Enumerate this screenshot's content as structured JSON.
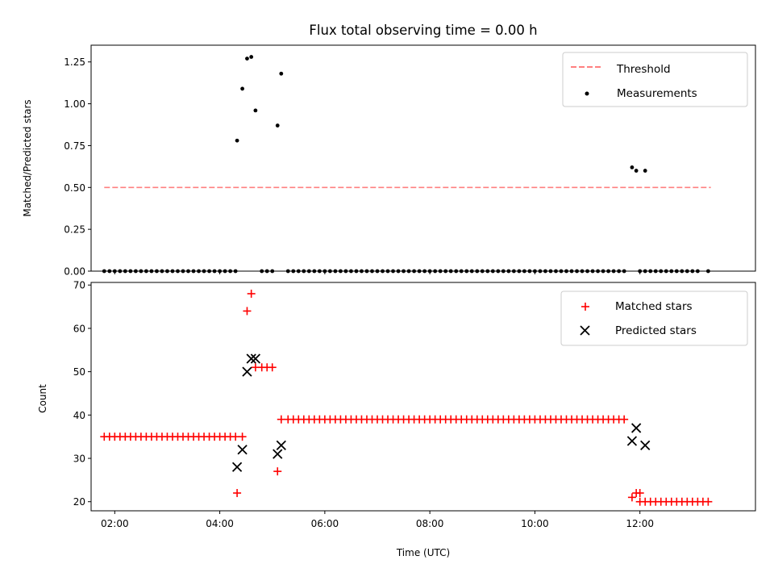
{
  "chart_data": [
    {
      "type": "scatter",
      "title": "Flux total observing time = 0.00 h",
      "ylabel": "Matched/Predicted stars",
      "xlabel": "",
      "xlim": [
        1.55,
        14.2
      ],
      "ylim": [
        0,
        1.35
      ],
      "x_ticks_hours": [
        2,
        4,
        6,
        8,
        10,
        12
      ],
      "y_ticks": [
        "0.00",
        "0.25",
        "0.50",
        "0.75",
        "1.00",
        "1.25"
      ],
      "legend_position": "upper right",
      "threshold": {
        "name": "Threshold",
        "value": 0.5,
        "x_range": [
          1.8,
          13.35
        ],
        "color": "#ff8080",
        "style": "dashed"
      },
      "series": [
        {
          "name": "Measurements",
          "color": "#000000",
          "marker": "dot",
          "points": [
            [
              4.33,
              0.78
            ],
            [
              4.43,
              1.09
            ],
            [
              4.52,
              1.27
            ],
            [
              4.6,
              1.28
            ],
            [
              4.68,
              0.96
            ],
            [
              5.1,
              0.87
            ],
            [
              5.17,
              1.18
            ],
            [
              11.85,
              0.62
            ],
            [
              11.93,
              0.6
            ],
            [
              12.1,
              0.6
            ]
          ],
          "zeros_x": [
            [
              1.8,
              4.25,
              0.1
            ],
            [
              4.8,
              5.0,
              0.1
            ],
            [
              5.3,
              11.7,
              0.1
            ],
            [
              12.0,
              13.1,
              0.1
            ],
            [
              13.3,
              13.3,
              0.1
            ]
          ]
        }
      ]
    },
    {
      "type": "scatter",
      "xlabel": "Time (UTC)",
      "ylabel": "Count",
      "xlim": [
        1.55,
        14.2
      ],
      "ylim": [
        17.9,
        70.6
      ],
      "x_tick_labels": [
        "02:00",
        "04:00",
        "06:00",
        "08:00",
        "10:00",
        "12:00"
      ],
      "x_ticks_hours": [
        2,
        4,
        6,
        8,
        10,
        12
      ],
      "y_ticks": [
        "20",
        "30",
        "40",
        "50",
        "60",
        "70"
      ],
      "legend_position": "upper right",
      "series": [
        {
          "name": "Matched stars",
          "color": "#ff0000",
          "marker": "plus",
          "runs": [
            [
              1.8,
              4.25,
              0.1,
              35
            ],
            [
              4.8,
              5.0,
              0.1,
              51
            ],
            [
              5.3,
              11.7,
              0.1,
              39
            ],
            [
              12.0,
              13.3,
              0.1,
              20
            ]
          ],
          "points": [
            [
              4.33,
              22
            ],
            [
              4.43,
              35
            ],
            [
              4.52,
              64
            ],
            [
              4.6,
              68
            ],
            [
              4.68,
              51
            ],
            [
              5.1,
              27
            ],
            [
              5.17,
              39
            ],
            [
              11.85,
              21
            ],
            [
              11.93,
              22
            ],
            [
              12.0,
              22
            ]
          ]
        },
        {
          "name": "Predicted stars",
          "color": "#000000",
          "marker": "x",
          "points": [
            [
              4.33,
              28
            ],
            [
              4.43,
              32
            ],
            [
              4.52,
              50
            ],
            [
              4.6,
              53
            ],
            [
              4.68,
              53
            ],
            [
              5.1,
              31
            ],
            [
              5.17,
              33
            ],
            [
              11.85,
              34
            ],
            [
              11.93,
              37
            ],
            [
              12.1,
              33
            ]
          ]
        }
      ]
    }
  ]
}
